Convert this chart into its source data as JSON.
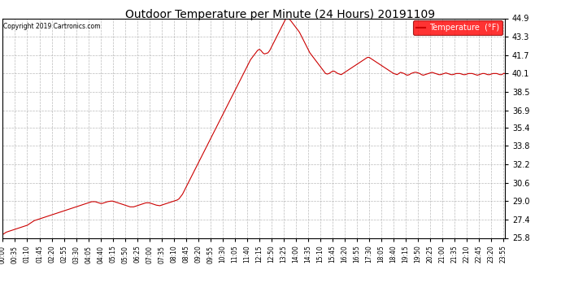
{
  "title": "Outdoor Temperature per Minute (24 Hours) 20191109",
  "copyright_text": "Copyright 2019 Cartronics.com",
  "legend_label": "Temperature  (°F)",
  "line_color": "#cc0000",
  "background_color": "#ffffff",
  "grid_color": "#aaaaaa",
  "ylim": [
    25.8,
    44.9
  ],
  "yticks": [
    25.8,
    27.4,
    29.0,
    30.6,
    32.2,
    33.8,
    35.4,
    36.9,
    38.5,
    40.1,
    41.7,
    43.3,
    44.9
  ],
  "xtick_step_minutes": 35,
  "total_minutes": 1440,
  "data_points": [
    [
      0,
      26.1
    ],
    [
      10,
      26.3
    ],
    [
      20,
      26.4
    ],
    [
      30,
      26.5
    ],
    [
      40,
      26.6
    ],
    [
      50,
      26.7
    ],
    [
      60,
      26.8
    ],
    [
      70,
      26.9
    ],
    [
      75,
      27.0
    ],
    [
      80,
      27.1
    ],
    [
      90,
      27.3
    ],
    [
      95,
      27.35
    ],
    [
      100,
      27.4
    ],
    [
      110,
      27.5
    ],
    [
      120,
      27.6
    ],
    [
      130,
      27.7
    ],
    [
      140,
      27.8
    ],
    [
      150,
      27.9
    ],
    [
      160,
      28.0
    ],
    [
      170,
      28.1
    ],
    [
      180,
      28.2
    ],
    [
      190,
      28.3
    ],
    [
      200,
      28.4
    ],
    [
      210,
      28.5
    ],
    [
      220,
      28.6
    ],
    [
      230,
      28.7
    ],
    [
      240,
      28.8
    ],
    [
      250,
      28.9
    ],
    [
      255,
      28.95
    ],
    [
      260,
      28.95
    ],
    [
      265,
      28.95
    ],
    [
      270,
      28.9
    ],
    [
      280,
      28.8
    ],
    [
      285,
      28.8
    ],
    [
      290,
      28.85
    ],
    [
      295,
      28.9
    ],
    [
      300,
      28.95
    ],
    [
      310,
      29.0
    ],
    [
      315,
      29.0
    ],
    [
      320,
      28.95
    ],
    [
      325,
      28.9
    ],
    [
      330,
      28.85
    ],
    [
      340,
      28.75
    ],
    [
      350,
      28.65
    ],
    [
      360,
      28.55
    ],
    [
      365,
      28.5
    ],
    [
      370,
      28.5
    ],
    [
      375,
      28.5
    ],
    [
      380,
      28.55
    ],
    [
      390,
      28.65
    ],
    [
      400,
      28.75
    ],
    [
      410,
      28.85
    ],
    [
      415,
      28.85
    ],
    [
      420,
      28.85
    ],
    [
      425,
      28.8
    ],
    [
      430,
      28.75
    ],
    [
      440,
      28.65
    ],
    [
      450,
      28.6
    ],
    [
      455,
      28.65
    ],
    [
      460,
      28.7
    ],
    [
      470,
      28.8
    ],
    [
      480,
      28.9
    ],
    [
      490,
      29.0
    ],
    [
      495,
      29.05
    ],
    [
      500,
      29.1
    ],
    [
      505,
      29.2
    ],
    [
      510,
      29.4
    ],
    [
      515,
      29.6
    ],
    [
      520,
      29.9
    ],
    [
      525,
      30.2
    ],
    [
      530,
      30.5
    ],
    [
      535,
      30.8
    ],
    [
      540,
      31.1
    ],
    [
      545,
      31.4
    ],
    [
      550,
      31.7
    ],
    [
      555,
      32.0
    ],
    [
      560,
      32.3
    ],
    [
      565,
      32.6
    ],
    [
      570,
      32.9
    ],
    [
      575,
      33.2
    ],
    [
      580,
      33.5
    ],
    [
      585,
      33.8
    ],
    [
      590,
      34.1
    ],
    [
      595,
      34.4
    ],
    [
      600,
      34.7
    ],
    [
      605,
      35.0
    ],
    [
      610,
      35.3
    ],
    [
      615,
      35.6
    ],
    [
      620,
      35.9
    ],
    [
      625,
      36.2
    ],
    [
      630,
      36.5
    ],
    [
      635,
      36.8
    ],
    [
      640,
      37.1
    ],
    [
      645,
      37.4
    ],
    [
      650,
      37.7
    ],
    [
      655,
      38.0
    ],
    [
      660,
      38.3
    ],
    [
      665,
      38.6
    ],
    [
      670,
      38.9
    ],
    [
      675,
      39.2
    ],
    [
      680,
      39.5
    ],
    [
      685,
      39.8
    ],
    [
      690,
      40.1
    ],
    [
      695,
      40.4
    ],
    [
      700,
      40.7
    ],
    [
      705,
      41.0
    ],
    [
      710,
      41.3
    ],
    [
      715,
      41.5
    ],
    [
      720,
      41.7
    ],
    [
      725,
      41.9
    ],
    [
      730,
      42.1
    ],
    [
      735,
      42.2
    ],
    [
      740,
      42.1
    ],
    [
      745,
      41.9
    ],
    [
      750,
      41.8
    ],
    [
      755,
      41.85
    ],
    [
      760,
      41.9
    ],
    [
      765,
      42.1
    ],
    [
      770,
      42.4
    ],
    [
      775,
      42.7
    ],
    [
      780,
      43.0
    ],
    [
      785,
      43.3
    ],
    [
      790,
      43.6
    ],
    [
      795,
      43.9
    ],
    [
      800,
      44.2
    ],
    [
      805,
      44.5
    ],
    [
      810,
      44.8
    ],
    [
      815,
      44.9
    ],
    [
      820,
      44.85
    ],
    [
      825,
      44.7
    ],
    [
      830,
      44.5
    ],
    [
      835,
      44.3
    ],
    [
      840,
      44.1
    ],
    [
      845,
      43.9
    ],
    [
      850,
      43.7
    ],
    [
      855,
      43.4
    ],
    [
      860,
      43.1
    ],
    [
      865,
      42.8
    ],
    [
      870,
      42.5
    ],
    [
      875,
      42.2
    ],
    [
      880,
      41.9
    ],
    [
      885,
      41.7
    ],
    [
      890,
      41.5
    ],
    [
      895,
      41.3
    ],
    [
      900,
      41.1
    ],
    [
      905,
      40.9
    ],
    [
      910,
      40.7
    ],
    [
      915,
      40.5
    ],
    [
      920,
      40.3
    ],
    [
      925,
      40.1
    ],
    [
      930,
      40.05
    ],
    [
      935,
      40.1
    ],
    [
      940,
      40.2
    ],
    [
      945,
      40.3
    ],
    [
      950,
      40.3
    ],
    [
      955,
      40.2
    ],
    [
      960,
      40.1
    ],
    [
      965,
      40.05
    ],
    [
      970,
      40.0
    ],
    [
      975,
      40.1
    ],
    [
      980,
      40.2
    ],
    [
      985,
      40.3
    ],
    [
      990,
      40.4
    ],
    [
      995,
      40.5
    ],
    [
      1000,
      40.6
    ],
    [
      1005,
      40.7
    ],
    [
      1010,
      40.8
    ],
    [
      1015,
      40.9
    ],
    [
      1020,
      41.0
    ],
    [
      1025,
      41.1
    ],
    [
      1030,
      41.2
    ],
    [
      1035,
      41.3
    ],
    [
      1040,
      41.4
    ],
    [
      1045,
      41.5
    ],
    [
      1050,
      41.5
    ],
    [
      1055,
      41.4
    ],
    [
      1060,
      41.3
    ],
    [
      1065,
      41.2
    ],
    [
      1070,
      41.1
    ],
    [
      1075,
      41.0
    ],
    [
      1080,
      40.9
    ],
    [
      1085,
      40.8
    ],
    [
      1090,
      40.7
    ],
    [
      1095,
      40.6
    ],
    [
      1100,
      40.5
    ],
    [
      1105,
      40.4
    ],
    [
      1110,
      40.3
    ],
    [
      1115,
      40.2
    ],
    [
      1120,
      40.1
    ],
    [
      1125,
      40.05
    ],
    [
      1130,
      40.0
    ],
    [
      1135,
      40.1
    ],
    [
      1140,
      40.2
    ],
    [
      1145,
      40.15
    ],
    [
      1150,
      40.1
    ],
    [
      1155,
      40.0
    ],
    [
      1160,
      39.95
    ],
    [
      1165,
      40.0
    ],
    [
      1170,
      40.1
    ],
    [
      1175,
      40.15
    ],
    [
      1180,
      40.2
    ],
    [
      1185,
      40.2
    ],
    [
      1190,
      40.15
    ],
    [
      1195,
      40.1
    ],
    [
      1200,
      40.0
    ],
    [
      1205,
      39.95
    ],
    [
      1210,
      40.0
    ],
    [
      1215,
      40.05
    ],
    [
      1220,
      40.1
    ],
    [
      1225,
      40.15
    ],
    [
      1230,
      40.2
    ],
    [
      1235,
      40.15
    ],
    [
      1240,
      40.1
    ],
    [
      1245,
      40.05
    ],
    [
      1250,
      40.0
    ],
    [
      1255,
      40.0
    ],
    [
      1260,
      40.05
    ],
    [
      1265,
      40.1
    ],
    [
      1270,
      40.15
    ],
    [
      1275,
      40.1
    ],
    [
      1280,
      40.05
    ],
    [
      1285,
      40.0
    ],
    [
      1290,
      40.0
    ],
    [
      1295,
      40.05
    ],
    [
      1300,
      40.1
    ],
    [
      1305,
      40.1
    ],
    [
      1310,
      40.1
    ],
    [
      1315,
      40.05
    ],
    [
      1320,
      40.0
    ],
    [
      1325,
      40.0
    ],
    [
      1330,
      40.05
    ],
    [
      1335,
      40.1
    ],
    [
      1340,
      40.1
    ],
    [
      1345,
      40.1
    ],
    [
      1350,
      40.05
    ],
    [
      1355,
      40.0
    ],
    [
      1360,
      39.95
    ],
    [
      1365,
      40.0
    ],
    [
      1370,
      40.05
    ],
    [
      1375,
      40.1
    ],
    [
      1380,
      40.1
    ],
    [
      1385,
      40.05
    ],
    [
      1390,
      40.0
    ],
    [
      1395,
      40.0
    ],
    [
      1400,
      40.05
    ],
    [
      1405,
      40.1
    ],
    [
      1410,
      40.1
    ],
    [
      1415,
      40.1
    ],
    [
      1420,
      40.05
    ],
    [
      1425,
      40.0
    ],
    [
      1430,
      40.0
    ],
    [
      1435,
      40.1
    ],
    [
      1439,
      40.1
    ]
  ]
}
